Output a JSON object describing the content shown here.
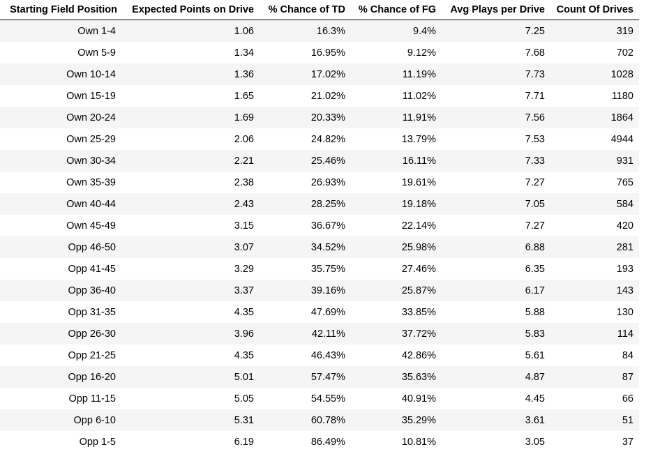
{
  "table": {
    "headers": [
      "Starting Field Position",
      "Expected Points on Drive",
      "% Chance of TD",
      "% Chance of FG",
      "Avg Plays per Drive",
      "Count Of Drives"
    ],
    "rows": [
      [
        "Own 1-4",
        "1.06",
        "16.3%",
        "9.4%",
        "7.25",
        "319"
      ],
      [
        "Own 5-9",
        "1.34",
        "16.95%",
        "9.12%",
        "7.68",
        "702"
      ],
      [
        "Own 10-14",
        "1.36",
        "17.02%",
        "11.19%",
        "7.73",
        "1028"
      ],
      [
        "Own 15-19",
        "1.65",
        "21.02%",
        "11.02%",
        "7.71",
        "1180"
      ],
      [
        "Own 20-24",
        "1.69",
        "20.33%",
        "11.91%",
        "7.56",
        "1864"
      ],
      [
        "Own 25-29",
        "2.06",
        "24.82%",
        "13.79%",
        "7.53",
        "4944"
      ],
      [
        "Own 30-34",
        "2.21",
        "25.46%",
        "16.11%",
        "7.33",
        "931"
      ],
      [
        "Own 35-39",
        "2.38",
        "26.93%",
        "19.61%",
        "7.27",
        "765"
      ],
      [
        "Own 40-44",
        "2.43",
        "28.25%",
        "19.18%",
        "7.05",
        "584"
      ],
      [
        "Own 45-49",
        "3.15",
        "36.67%",
        "22.14%",
        "7.27",
        "420"
      ],
      [
        "Opp 46-50",
        "3.07",
        "34.52%",
        "25.98%",
        "6.88",
        "281"
      ],
      [
        "Opp 41-45",
        "3.29",
        "35.75%",
        "27.46%",
        "6.35",
        "193"
      ],
      [
        "Opp 36-40",
        "3.37",
        "39.16%",
        "25.87%",
        "6.17",
        "143"
      ],
      [
        "Opp 31-35",
        "4.35",
        "47.69%",
        "33.85%",
        "5.88",
        "130"
      ],
      [
        "Opp 26-30",
        "3.96",
        "42.11%",
        "37.72%",
        "5.83",
        "114"
      ],
      [
        "Opp 21-25",
        "4.35",
        "46.43%",
        "42.86%",
        "5.61",
        "84"
      ],
      [
        "Opp 16-20",
        "5.01",
        "57.47%",
        "35.63%",
        "4.87",
        "87"
      ],
      [
        "Opp 11-15",
        "5.05",
        "54.55%",
        "40.91%",
        "4.45",
        "66"
      ],
      [
        "Opp 6-10",
        "5.31",
        "60.78%",
        "35.29%",
        "3.61",
        "51"
      ],
      [
        "Opp 1-5",
        "6.19",
        "86.49%",
        "10.81%",
        "3.05",
        "37"
      ]
    ]
  }
}
